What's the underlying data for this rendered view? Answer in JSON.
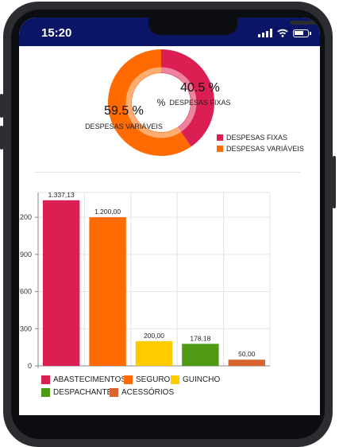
{
  "status_bar": {
    "time": "15:20"
  },
  "donut": {
    "center_label": "%",
    "slices": [
      {
        "name": "DESPESAS FIXAS",
        "percent_label": "40.5 %",
        "value": 40.5,
        "color": "#dc1f52"
      },
      {
        "name": "DESPESAS VARIÁVEIS",
        "percent_label": "59.5 %",
        "value": 59.5,
        "color": "#ff6b00"
      }
    ]
  },
  "chart_data": {
    "type": "bar",
    "categories": [
      "ABASTECIMENTOS",
      "SEGURO",
      "GUINCHO",
      "DESPACHANTE",
      "ACESSÓRIOS"
    ],
    "values": [
      1337.13,
      1200.0,
      200.0,
      178.18,
      50.0
    ],
    "value_labels": [
      "1.337,13",
      "1.200,00",
      "200,00",
      "178,18",
      "50,00"
    ],
    "colors": [
      "#dc1f52",
      "#ff6b00",
      "#ffcc00",
      "#4f9a14",
      "#d9642e"
    ],
    "y_ticks": [
      0,
      300,
      600,
      900,
      1200
    ],
    "y_tick_labels": [
      "0",
      "300",
      "600",
      "900",
      "1,200"
    ],
    "ylim": [
      0,
      1400
    ],
    "grid": true,
    "legend_position": "bottom"
  }
}
